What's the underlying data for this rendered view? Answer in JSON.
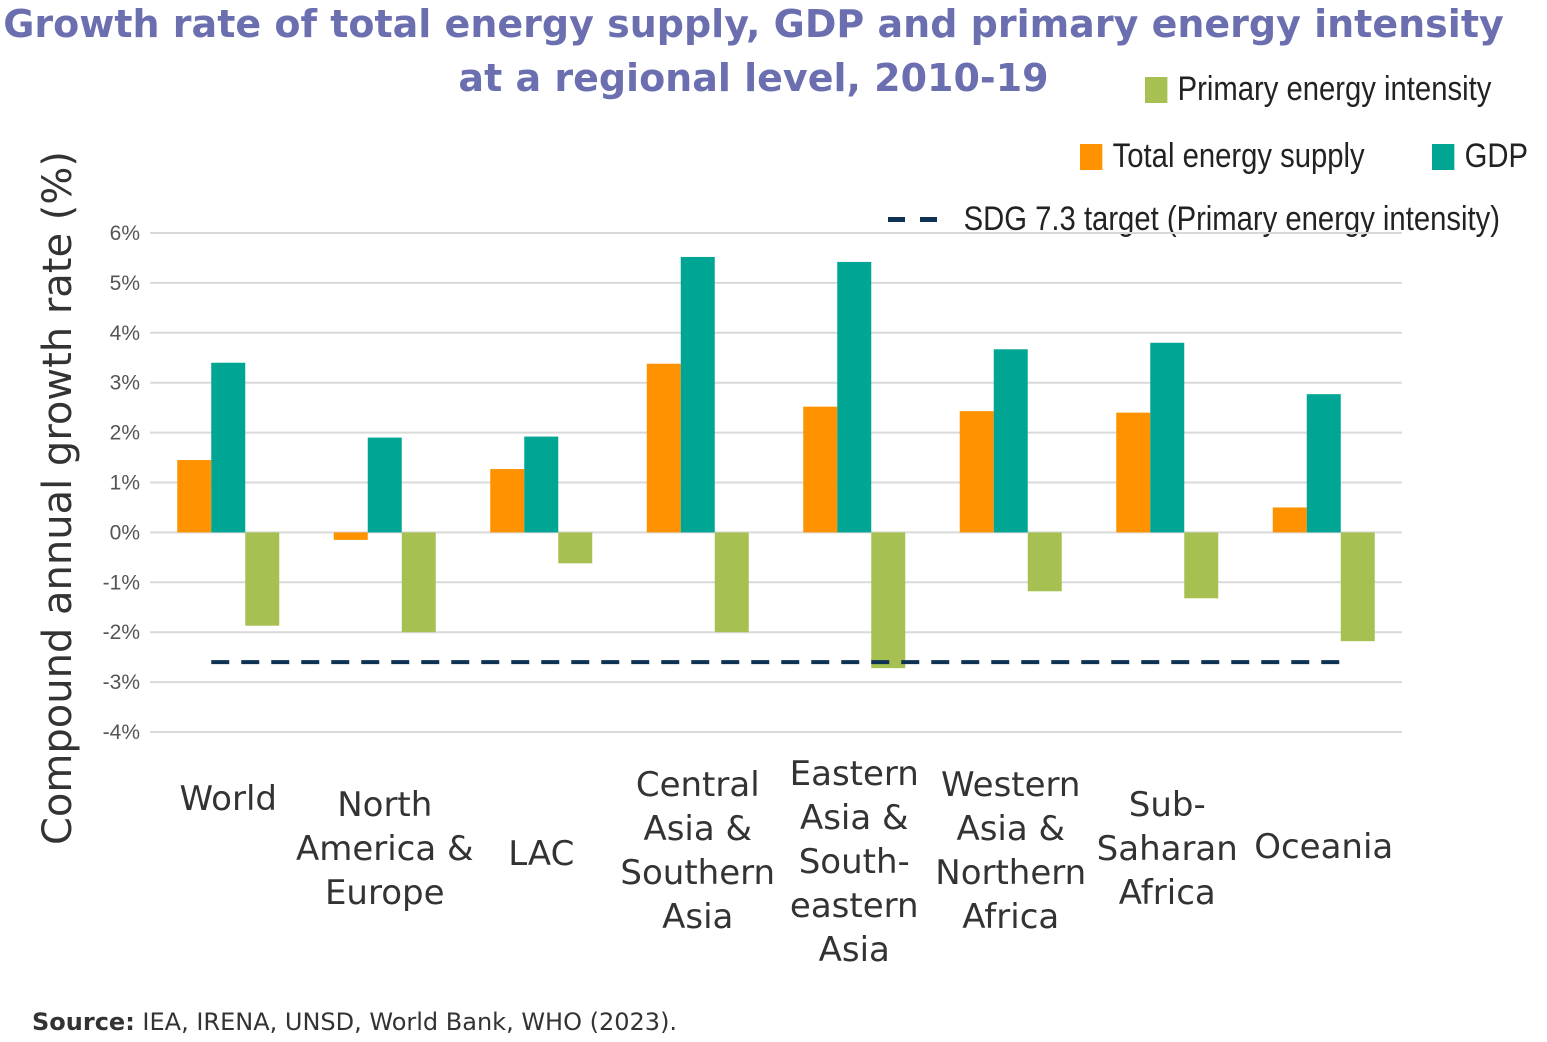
{
  "chart_data": {
    "type": "bar",
    "title_lines": [
      "Growth rate of total energy supply, GDP and primary energy intensity",
      "at a regional level, 2010-19"
    ],
    "ylabel": "Compound annual growth rate (%)",
    "xlabel": "",
    "ylim": [
      -4,
      6
    ],
    "yticks": [
      "6%",
      "5%",
      "4%",
      "3%",
      "2%",
      "1%",
      "0%",
      "-1%",
      "-2%",
      "-3%",
      "-4%"
    ],
    "grid": true,
    "categories": [
      "World",
      "North\nAmerica &\nEurope",
      "LAC",
      "Central\nAsia &\nSouthern\nAsia",
      "Eastern\nAsia &\nSouth-\neastern\nAsia",
      "Western\nAsia &\nNorthern\nAfrica",
      "Sub-\nSaharan\nAfrica",
      "Oceania"
    ],
    "series": [
      {
        "name": "Total energy supply",
        "color": "#ff9200",
        "values": [
          1.45,
          -0.15,
          1.27,
          3.38,
          2.52,
          2.43,
          2.4,
          0.5
        ]
      },
      {
        "name": "GDP",
        "color": "#00a693",
        "values": [
          3.4,
          1.9,
          1.92,
          5.52,
          5.42,
          3.67,
          3.8,
          2.77
        ]
      },
      {
        "name": "Primary energy intensity",
        "color": "#a6c152",
        "values": [
          -1.87,
          -2.0,
          -0.62,
          -2.0,
          -2.72,
          -1.18,
          -1.32,
          -2.18
        ]
      }
    ],
    "target": {
      "name": "SDG 7.3 target (Primary energy intensity)",
      "value": -2.6,
      "color": "#0e3254"
    },
    "legend_position": "top-right",
    "source_label": "Source:",
    "source_text": " IEA, IRENA, UNSD, World Bank, WHO (2023)."
  }
}
